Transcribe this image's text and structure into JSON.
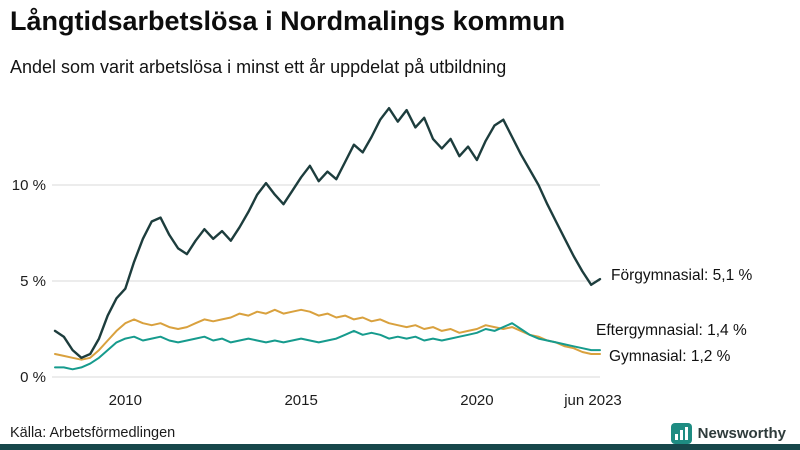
{
  "header": {
    "title": "Långtidsarbetslösa i Nordmalings kommun",
    "subtitle": "Andel som varit arbetslösa i minst ett år uppdelat på utbildning"
  },
  "chart_data": {
    "type": "line",
    "title": "Långtidsarbetslösa i Nordmalings kommun",
    "subtitle": "Andel som varit arbetslösa i minst ett år uppdelat på utbildning",
    "xlabel": "",
    "ylabel": "",
    "grid": true,
    "legend_position": "end-of-line-labels",
    "x_domain": [
      2008,
      2023.5
    ],
    "ylim": [
      0,
      14.5
    ],
    "yticks": [
      {
        "value": 0,
        "label": "0 %"
      },
      {
        "value": 5,
        "label": "5 %"
      },
      {
        "value": 10,
        "label": "10 %"
      }
    ],
    "xticks": [
      {
        "value": 2010,
        "label": "2010"
      },
      {
        "value": 2015,
        "label": "2015"
      },
      {
        "value": 2020,
        "label": "2020"
      },
      {
        "value": 2023.5,
        "label": "jun 2023"
      }
    ],
    "x": [
      2008,
      2008.25,
      2008.5,
      2008.75,
      2009,
      2009.25,
      2009.5,
      2009.75,
      2010,
      2010.25,
      2010.5,
      2010.75,
      2011,
      2011.25,
      2011.5,
      2011.75,
      2012,
      2012.25,
      2012.5,
      2012.75,
      2013,
      2013.25,
      2013.5,
      2013.75,
      2014,
      2014.25,
      2014.5,
      2014.75,
      2015,
      2015.25,
      2015.5,
      2015.75,
      2016,
      2016.25,
      2016.5,
      2016.75,
      2017,
      2017.25,
      2017.5,
      2017.75,
      2018,
      2018.25,
      2018.5,
      2018.75,
      2019,
      2019.25,
      2019.5,
      2019.75,
      2020,
      2020.25,
      2020.5,
      2020.75,
      2021,
      2021.25,
      2021.5,
      2021.75,
      2022,
      2022.25,
      2022.5,
      2022.75,
      2023,
      2023.25,
      2023.5
    ],
    "series": [
      {
        "id": "gymnasial",
        "name": "Gymnasial",
        "color": "#d9a13e",
        "stroke_width": 2,
        "end_value": 1.2,
        "end_label": "Gymnasial: 1,2 %",
        "values": [
          1.2,
          1.1,
          1.0,
          0.9,
          1.0,
          1.4,
          1.9,
          2.4,
          2.8,
          3.0,
          2.8,
          2.7,
          2.8,
          2.6,
          2.5,
          2.6,
          2.8,
          3.0,
          2.9,
          3.0,
          3.1,
          3.3,
          3.2,
          3.4,
          3.3,
          3.5,
          3.3,
          3.4,
          3.5,
          3.4,
          3.2,
          3.3,
          3.1,
          3.2,
          3.0,
          3.1,
          2.9,
          3.0,
          2.8,
          2.7,
          2.6,
          2.7,
          2.5,
          2.6,
          2.4,
          2.5,
          2.3,
          2.4,
          2.5,
          2.7,
          2.6,
          2.5,
          2.6,
          2.4,
          2.2,
          2.1,
          1.9,
          1.8,
          1.6,
          1.5,
          1.3,
          1.2,
          1.2
        ]
      },
      {
        "id": "eftergymnasial",
        "name": "Eftergymnasial",
        "color": "#169b8d",
        "stroke_width": 2,
        "end_value": 1.4,
        "end_label": "Eftergymnasial: 1,4 %",
        "values": [
          0.5,
          0.5,
          0.4,
          0.5,
          0.7,
          1.0,
          1.4,
          1.8,
          2.0,
          2.1,
          1.9,
          2.0,
          2.1,
          1.9,
          1.8,
          1.9,
          2.0,
          2.1,
          1.9,
          2.0,
          1.8,
          1.9,
          2.0,
          1.9,
          1.8,
          1.9,
          1.8,
          1.9,
          2.0,
          1.9,
          1.8,
          1.9,
          2.0,
          2.2,
          2.4,
          2.2,
          2.3,
          2.2,
          2.0,
          2.1,
          2.0,
          2.1,
          1.9,
          2.0,
          1.9,
          2.0,
          2.1,
          2.2,
          2.3,
          2.5,
          2.4,
          2.6,
          2.8,
          2.5,
          2.2,
          2.0,
          1.9,
          1.8,
          1.7,
          1.6,
          1.5,
          1.4,
          1.4
        ]
      },
      {
        "id": "forgymnasial",
        "name": "Förgymnasial",
        "color": "#1d3d3d",
        "stroke_width": 2.4,
        "end_value": 5.1,
        "end_label": "Förgymnasial: 5,1 %",
        "values": [
          2.4,
          2.1,
          1.4,
          1.0,
          1.2,
          2.0,
          3.2,
          4.1,
          4.6,
          6.0,
          7.2,
          8.1,
          8.3,
          7.4,
          6.7,
          6.4,
          7.1,
          7.7,
          7.2,
          7.6,
          7.1,
          7.8,
          8.6,
          9.5,
          10.1,
          9.5,
          9.0,
          9.7,
          10.4,
          11.0,
          10.2,
          10.7,
          10.3,
          11.2,
          12.1,
          11.7,
          12.5,
          13.4,
          14.0,
          13.3,
          13.9,
          13.0,
          13.5,
          12.4,
          11.9,
          12.4,
          11.5,
          12.0,
          11.3,
          12.3,
          13.1,
          13.4,
          12.5,
          11.6,
          10.8,
          10.0,
          9.0,
          8.1,
          7.2,
          6.3,
          5.5,
          4.8,
          5.1
        ]
      }
    ],
    "colors": {
      "grid": "#d8d8d8",
      "forgymnasial": "#1d3d3d",
      "gymnasial": "#d9a13e",
      "eftergymnasial": "#169b8d",
      "bottom_bar": "#17474b",
      "brand_logo": "#1e8c82"
    }
  },
  "footer": {
    "source": "Källa: Arbetsförmedlingen",
    "brand": "Newsworthy"
  }
}
